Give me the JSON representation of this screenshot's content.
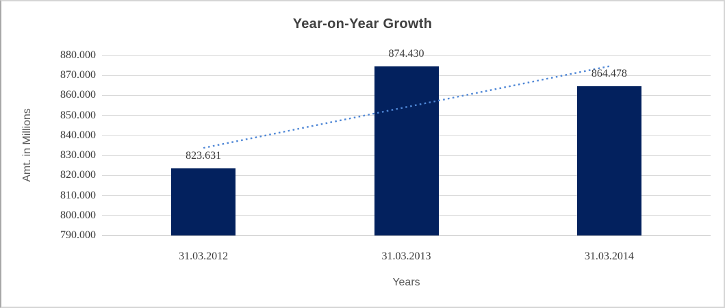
{
  "frame": {
    "background": "#FFFFFF",
    "border_color": "#D5D5D5",
    "border_left_color": "#A8A8A8"
  },
  "chart_data": {
    "type": "bar",
    "title": "Year-on-Year Growth",
    "categories": [
      "31.03.2012",
      "31.03.2013",
      "31.03.2014"
    ],
    "values": [
      823.631,
      874.43,
      864.478
    ],
    "data_labels": [
      "823.631",
      "874.430",
      "864.478"
    ],
    "xlabel": "Years",
    "ylabel": "Amt. in Millions",
    "ylim": [
      790,
      880
    ],
    "ytick_step": 10,
    "ytick_labels_top_to_bottom": [
      "880.000",
      "870.000",
      "860.000",
      "850.000",
      "840.000",
      "830.000",
      "820.000",
      "810.000",
      "800.000",
      "790.000"
    ],
    "grid": true,
    "legend": "none",
    "trendline": {
      "type": "linear",
      "style": "dotted",
      "color": "#4F87D6"
    },
    "colors": {
      "bar": "#03215E",
      "gridline": "#D9D9D9",
      "axis_line": "#BFBFBF",
      "title": "#404040",
      "tick_label": "#3A3A3A",
      "axis_title": "#595959"
    }
  }
}
